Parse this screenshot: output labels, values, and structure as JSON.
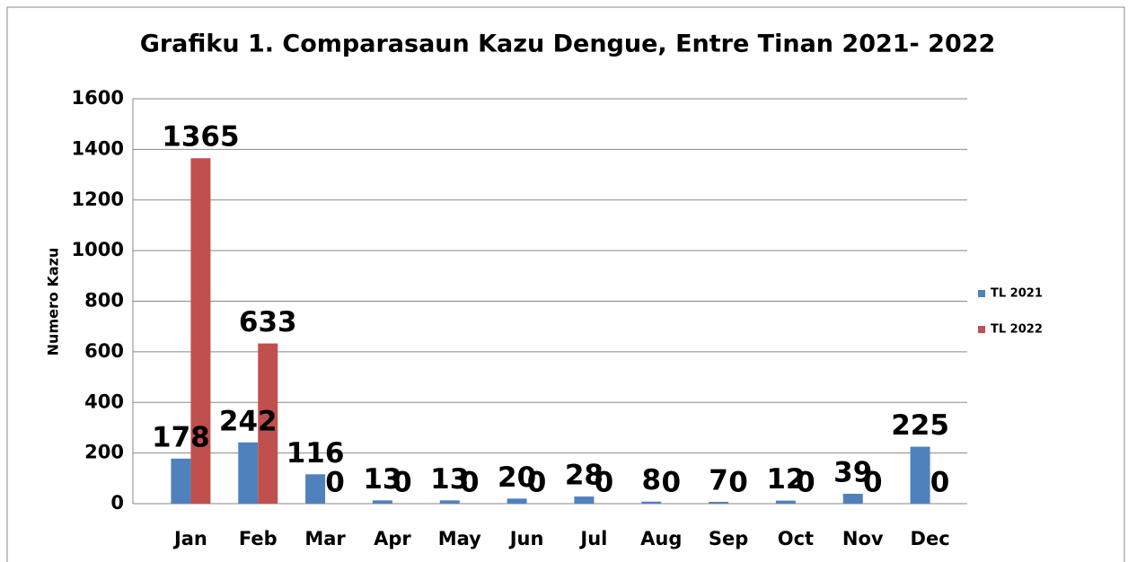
{
  "chart_data": {
    "type": "bar",
    "title": "Grafiku 1. Comparasaun Kazu Dengue, Entre Tinan 2021- 2022",
    "y_label": "Numero Kazu",
    "categories": [
      "Jan",
      "Feb",
      "Mar",
      "Apr",
      "May",
      "Jun",
      "Jul",
      "Aug",
      "Sep",
      "Oct",
      "Nov",
      "Dec"
    ],
    "series": [
      {
        "name": "TL 2021",
        "color": "#4f81bd",
        "values": [
          178,
          242,
          116,
          13,
          13,
          20,
          28,
          8,
          7,
          12,
          39,
          225
        ]
      },
      {
        "name": "TL 2022",
        "color": "#c0504d",
        "values": [
          1365,
          633,
          0,
          0,
          0,
          0,
          0,
          0,
          0,
          0,
          0,
          0
        ]
      }
    ],
    "ylim": [
      0,
      1600
    ],
    "yticks": [
      0,
      200,
      400,
      600,
      800,
      1000,
      1200,
      1400,
      1600
    ],
    "grid": true,
    "legend": "right"
  }
}
